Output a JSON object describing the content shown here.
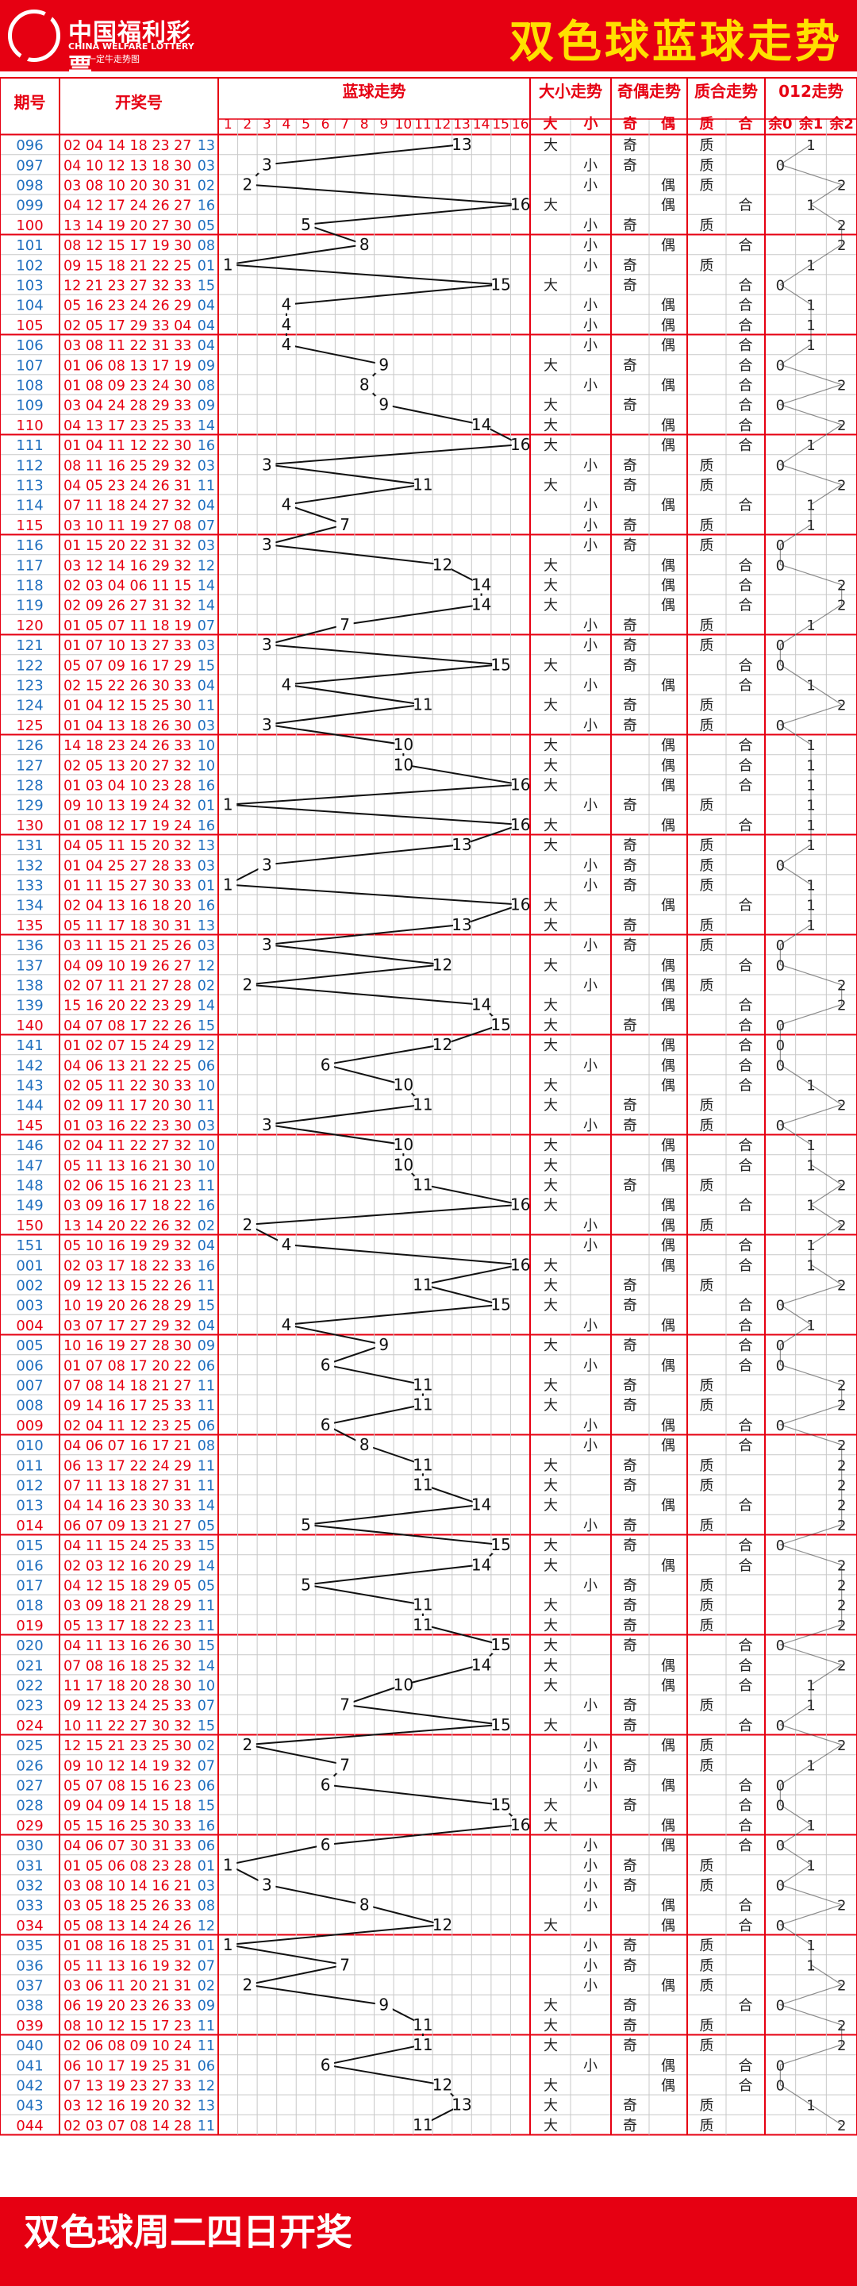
{
  "logo": {
    "cn": "中国福利彩票",
    "en": "CHINA WELFARE LOTTERY",
    "sub": "一定牛走势图"
  },
  "title": "双色球蓝球走势",
  "footer": "双色球周二四日开奖",
  "colors": {
    "red": "#e60012",
    "period": "#1f6fbf",
    "blue": "#1f6fbf",
    "yellow": "#ffe000",
    "sep": "#e60012"
  },
  "headers": {
    "period": "期号",
    "numbers": "开奖号",
    "blue_trend": "蓝球走势",
    "size": "大小走势",
    "parity": "奇偶走势",
    "prime": "质合走势",
    "mod": "012走势",
    "size_cols": [
      "大",
      "小"
    ],
    "parity_cols": [
      "奇",
      "偶"
    ],
    "prime_cols": [
      "质",
      "合"
    ],
    "mod_cols": [
      "余0",
      "余1",
      "余2"
    ]
  },
  "chart_data": {
    "type": "table",
    "title": "双色球蓝球走势",
    "blue_range": [
      1,
      16
    ],
    "rows": [
      {
        "period": "096",
        "reds": "02 04 14 18 23 27",
        "blue": 13
      },
      {
        "period": "097",
        "reds": "04 10 12 13 18 30",
        "blue": 3
      },
      {
        "period": "098",
        "reds": "03 08 10 20 30 31",
        "blue": 2
      },
      {
        "period": "099",
        "reds": "04 12 17 24 26 27",
        "blue": 16
      },
      {
        "period": "100",
        "reds": "13 14 19 20 27 30",
        "blue": 5
      },
      {
        "period": "101",
        "reds": "08 12 15 17 19 30",
        "blue": 8
      },
      {
        "period": "102",
        "reds": "09 15 18 21 22 25",
        "blue": 1
      },
      {
        "period": "103",
        "reds": "12 21 23 27 32 33",
        "blue": 15
      },
      {
        "period": "104",
        "reds": "05 16 23 24 26 29",
        "blue": 4
      },
      {
        "period": "105",
        "reds": "02 05 17 29 33 04",
        "blue": 4
      },
      {
        "period": "106",
        "reds": "03 08 11 22 31 33",
        "blue": 4
      },
      {
        "period": "107",
        "reds": "01 06 08 13 17 19",
        "blue": 9
      },
      {
        "period": "108",
        "reds": "01 08 09 23 24 30",
        "blue": 8
      },
      {
        "period": "109",
        "reds": "03 04 24 28 29 33",
        "blue": 9
      },
      {
        "period": "110",
        "reds": "04 13 17 23 25 33",
        "blue": 14
      },
      {
        "period": "111",
        "reds": "01 04 11 12 22 30",
        "blue": 16
      },
      {
        "period": "112",
        "reds": "08 11 16 25 29 32",
        "blue": 3
      },
      {
        "period": "113",
        "reds": "04 05 23 24 26 31",
        "blue": 11
      },
      {
        "period": "114",
        "reds": "07 11 18 24 27 32",
        "blue": 4
      },
      {
        "period": "115",
        "reds": "03 10 11 19 27 08",
        "blue": 7
      },
      {
        "period": "116",
        "reds": "01 15 20 22 31 32",
        "blue": 3
      },
      {
        "period": "117",
        "reds": "03 12 14 16 29 32",
        "blue": 12
      },
      {
        "period": "118",
        "reds": "02 03 04 06 11 15",
        "blue": 14
      },
      {
        "period": "119",
        "reds": "02 09 26 27 31 32",
        "blue": 14
      },
      {
        "period": "120",
        "reds": "01 05 07 11 18 19",
        "blue": 7
      },
      {
        "period": "121",
        "reds": "01 07 10 13 27 33",
        "blue": 3
      },
      {
        "period": "122",
        "reds": "05 07 09 16 17 29",
        "blue": 15
      },
      {
        "period": "123",
        "reds": "02 15 22 26 30 33",
        "blue": 4
      },
      {
        "period": "124",
        "reds": "01 04 12 15 25 30",
        "blue": 11
      },
      {
        "period": "125",
        "reds": "01 04 13 18 26 30",
        "blue": 3
      },
      {
        "period": "126",
        "reds": "14 18 23 24 26 33",
        "blue": 10
      },
      {
        "period": "127",
        "reds": "02 05 13 20 27 32",
        "blue": 10
      },
      {
        "period": "128",
        "reds": "01 03 04 10 23 28",
        "blue": 16
      },
      {
        "period": "129",
        "reds": "09 10 13 19 24 32",
        "blue": 1
      },
      {
        "period": "130",
        "reds": "01 08 12 17 19 24",
        "blue": 16
      },
      {
        "period": "131",
        "reds": "04 05 11 15 20 32",
        "blue": 13
      },
      {
        "period": "132",
        "reds": "01 04 25 27 28 33",
        "blue": 3
      },
      {
        "period": "133",
        "reds": "01 11 15 27 30 33",
        "blue": 1
      },
      {
        "period": "134",
        "reds": "02 04 13 16 18 20",
        "blue": 16
      },
      {
        "period": "135",
        "reds": "05 11 17 18 30 31",
        "blue": 13
      },
      {
        "period": "136",
        "reds": "03 11 15 21 25 26",
        "blue": 3
      },
      {
        "period": "137",
        "reds": "04 09 10 19 26 27",
        "blue": 12
      },
      {
        "period": "138",
        "reds": "02 07 11 21 27 28",
        "blue": 2
      },
      {
        "period": "139",
        "reds": "15 16 20 22 23 29",
        "blue": 14
      },
      {
        "period": "140",
        "reds": "04 07 08 17 22 26",
        "blue": 15
      },
      {
        "period": "141",
        "reds": "01 02 07 15 24 29",
        "blue": 12
      },
      {
        "period": "142",
        "reds": "04 06 13 21 22 25",
        "blue": 6
      },
      {
        "period": "143",
        "reds": "02 05 11 22 30 33",
        "blue": 10
      },
      {
        "period": "144",
        "reds": "02 09 11 17 20 30",
        "blue": 11
      },
      {
        "period": "145",
        "reds": "01 03 16 22 23 30",
        "blue": 3
      },
      {
        "period": "146",
        "reds": "02 04 11 22 27 32",
        "blue": 10
      },
      {
        "period": "147",
        "reds": "05 11 13 16 21 30",
        "blue": 10
      },
      {
        "period": "148",
        "reds": "02 06 15 16 21 23",
        "blue": 11
      },
      {
        "period": "149",
        "reds": "03 09 16 17 18 22",
        "blue": 16
      },
      {
        "period": "150",
        "reds": "13 14 20 22 26 32",
        "blue": 2
      },
      {
        "period": "151",
        "reds": "05 10 16 19 29 32",
        "blue": 4
      },
      {
        "period": "001",
        "reds": "02 03 17 18 22 33",
        "blue": 16
      },
      {
        "period": "002",
        "reds": "09 12 13 15 22 26",
        "blue": 11
      },
      {
        "period": "003",
        "reds": "10 19 20 26 28 29",
        "blue": 15
      },
      {
        "period": "004",
        "reds": "03 07 17 27 29 32",
        "blue": 4
      },
      {
        "period": "005",
        "reds": "10 16 19 27 28 30",
        "blue": 9
      },
      {
        "period": "006",
        "reds": "01 07 08 17 20 22",
        "blue": 6
      },
      {
        "period": "007",
        "reds": "07 08 14 18 21 27",
        "blue": 11
      },
      {
        "period": "008",
        "reds": "09 14 16 17 25 33",
        "blue": 11
      },
      {
        "period": "009",
        "reds": "02 04 11 12 23 25",
        "blue": 6
      },
      {
        "period": "010",
        "reds": "04 06 07 16 17 21",
        "blue": 8
      },
      {
        "period": "011",
        "reds": "06 13 17 22 24 29",
        "blue": 11
      },
      {
        "period": "012",
        "reds": "07 11 13 18 27 31",
        "blue": 11
      },
      {
        "period": "013",
        "reds": "04 14 16 23 30 33",
        "blue": 14
      },
      {
        "period": "014",
        "reds": "06 07 09 13 21 27",
        "blue": 5
      },
      {
        "period": "015",
        "reds": "04 11 15 24 25 33",
        "blue": 15
      },
      {
        "period": "016",
        "reds": "02 03 12 16 20 29",
        "blue": 14
      },
      {
        "period": "017",
        "reds": "04 12 15 18 29 05",
        "blue": 5
      },
      {
        "period": "018",
        "reds": "03 09 18 21 28 29",
        "blue": 11
      },
      {
        "period": "019",
        "reds": "05 13 17 18 22 23",
        "blue": 11
      },
      {
        "period": "020",
        "reds": "04 11 13 16 26 30",
        "blue": 15
      },
      {
        "period": "021",
        "reds": "07 08 16 18 25 32",
        "blue": 14
      },
      {
        "period": "022",
        "reds": "11 17 18 20 28 30",
        "blue": 10
      },
      {
        "period": "023",
        "reds": "09 12 13 24 25 33",
        "blue": 7
      },
      {
        "period": "024",
        "reds": "10 11 22 27 30 32",
        "blue": 15
      },
      {
        "period": "025",
        "reds": "12 15 21 23 25 30",
        "blue": 2
      },
      {
        "period": "026",
        "reds": "09 10 12 14 19 32",
        "blue": 7
      },
      {
        "period": "027",
        "reds": "05 07 08 15 16 23",
        "blue": 6
      },
      {
        "period": "028",
        "reds": "09 04 09 14 15 18",
        "blue": 15
      },
      {
        "period": "029",
        "reds": "05 15 16 25 30 33",
        "blue": 16
      },
      {
        "period": "030",
        "reds": "04 06 07 30 31 33",
        "blue": 6
      },
      {
        "period": "031",
        "reds": "01 05 06 08 23 28",
        "blue": 1
      },
      {
        "period": "032",
        "reds": "03 08 10 14 16 21",
        "blue": 3
      },
      {
        "period": "033",
        "reds": "03 05 18 25 26 33",
        "blue": 8
      },
      {
        "period": "034",
        "reds": "05 08 13 14 24 26",
        "blue": 12
      },
      {
        "period": "035",
        "reds": "01 08 16 18 25 31",
        "blue": 1
      },
      {
        "period": "036",
        "reds": "05 11 13 16 19 32",
        "blue": 7
      },
      {
        "period": "037",
        "reds": "03 06 11 20 21 31",
        "blue": 2
      },
      {
        "period": "038",
        "reds": "06 19 20 23 26 33",
        "blue": 9
      },
      {
        "period": "039",
        "reds": "08 10 12 15 17 23",
        "blue": 11
      },
      {
        "period": "040",
        "reds": "02 06 08 09 10 24",
        "blue": 11
      },
      {
        "period": "041",
        "reds": "06 10 17 19 25 31",
        "blue": 6
      },
      {
        "period": "042",
        "reds": "07 13 19 23 27 33",
        "blue": 12
      },
      {
        "period": "043",
        "reds": "03 12 16 19 20 32",
        "blue": 13
      },
      {
        "period": "044",
        "reds": "02 03 07 08 14 28",
        "blue": 11
      }
    ]
  }
}
